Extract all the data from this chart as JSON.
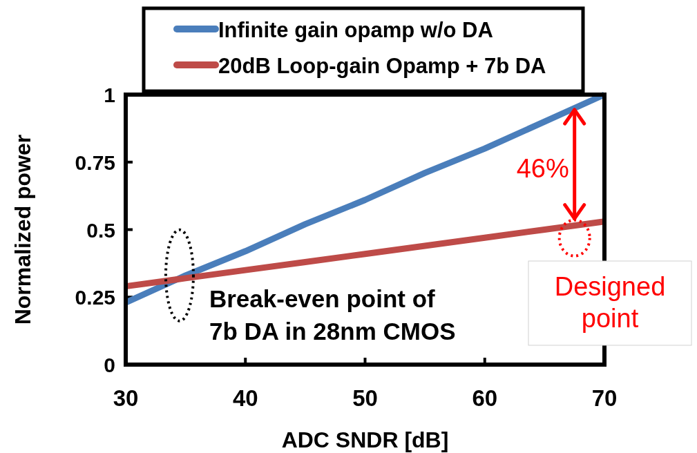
{
  "chart_data": {
    "type": "line",
    "xlabel": "ADC SNDR [dB]",
    "ylabel": "Normalized power",
    "x": [
      30,
      35,
      40,
      45,
      50,
      55,
      60,
      65,
      70
    ],
    "series": [
      {
        "name": "Infinite gain opamp w/o DA",
        "color": "#4a7ebb",
        "values": [
          0.23,
          0.33,
          0.42,
          0.52,
          0.61,
          0.71,
          0.8,
          0.9,
          1.0
        ]
      },
      {
        "name": "20dB Loop-gain Opamp + 7b DA",
        "color": "#be4b48",
        "values": [
          0.29,
          0.32,
          0.35,
          0.38,
          0.41,
          0.44,
          0.47,
          0.5,
          0.53
        ]
      }
    ],
    "xlim": [
      30,
      70
    ],
    "xticks": [
      30,
      40,
      50,
      60,
      70
    ],
    "ylim": [
      0,
      1
    ],
    "yticks": [
      0,
      0.25,
      0.5,
      0.75,
      1
    ],
    "legend": "top",
    "grid": false,
    "marker": "none",
    "line_style": "solid",
    "annotations": [
      "46%",
      {
        "text": "Break-even point of\n7b DA in 28nm CMOS",
        "x": 34.5,
        "y": 0.31
      },
      {
        "text": "Designed point",
        "x": 67.5,
        "y": 0.52
      }
    ]
  }
}
